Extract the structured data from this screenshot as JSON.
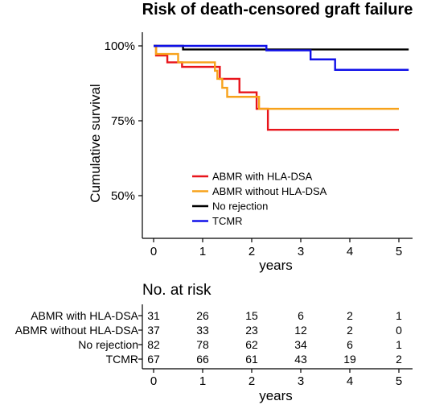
{
  "chart_data": [
    {
      "type": "line",
      "title": "Risk of death-censored graft failure",
      "xlabel": "years",
      "ylabel": "Cumulative survival",
      "xlim": [
        -0.2,
        5.2
      ],
      "ylim": [
        0.41,
        1.04
      ],
      "x_ticks": [
        0,
        1,
        2,
        3,
        4,
        5
      ],
      "x_tick_labels": [
        "0",
        "1",
        "2",
        "3",
        "4",
        "5"
      ],
      "y_ticks": [
        0.5,
        0.75,
        1.0
      ],
      "y_tick_labels": [
        "50%",
        "75%",
        "100%"
      ],
      "grid": false,
      "legend_position": "bottom-center",
      "step": true,
      "series": [
        {
          "name": "ABMR with HLA-DSA",
          "color": "#e8141b",
          "x": [
            0,
            0.05,
            0.25,
            0.28,
            0.55,
            0.58,
            1.05,
            1.35,
            1.6,
            1.75,
            2.0,
            2.1,
            2.33,
            5.0
          ],
          "y": [
            1.0,
            0.968,
            0.968,
            0.945,
            0.945,
            0.93,
            0.93,
            0.89,
            0.89,
            0.845,
            0.845,
            0.79,
            0.72,
            0.72
          ]
        },
        {
          "name": "ABMR without HLA-DSA",
          "color": "#f7a21b",
          "x": [
            0,
            0.05,
            0.35,
            0.5,
            1.1,
            1.25,
            1.3,
            1.4,
            1.5,
            2.05,
            2.15,
            5.0
          ],
          "y": [
            1.0,
            0.973,
            0.973,
            0.945,
            0.945,
            0.917,
            0.89,
            0.86,
            0.83,
            0.83,
            0.79,
            0.79
          ]
        },
        {
          "name": "No rejection",
          "color": "#000000",
          "x": [
            0,
            0.6,
            5.2
          ],
          "y": [
            1.0,
            0.988,
            0.988
          ]
        },
        {
          "name": "TCMR",
          "color": "#1010e8",
          "x": [
            0,
            2.3,
            3.2,
            3.7,
            5.2
          ],
          "y": [
            1.0,
            0.985,
            0.955,
            0.92,
            0.92
          ]
        }
      ]
    },
    {
      "type": "table",
      "title": "No. at risk",
      "xlabel": "years",
      "x_ticks": [
        0,
        1,
        2,
        3,
        4,
        5
      ],
      "x_tick_labels": [
        "0",
        "1",
        "2",
        "3",
        "4",
        "5"
      ],
      "rows": [
        {
          "label": "ABMR with HLA-DSA",
          "values": [
            31,
            26,
            15,
            6,
            2,
            1
          ]
        },
        {
          "label": "ABMR without HLA-DSA",
          "values": [
            37,
            33,
            23,
            12,
            2,
            0
          ]
        },
        {
          "label": "No rejection",
          "values": [
            82,
            78,
            62,
            34,
            6,
            1
          ]
        },
        {
          "label": "TCMR",
          "values": [
            67,
            66,
            61,
            43,
            19,
            2
          ]
        }
      ]
    }
  ]
}
